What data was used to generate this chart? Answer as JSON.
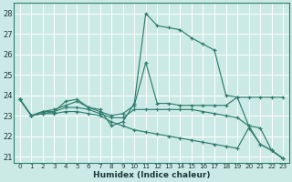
{
  "xlabel": "Humidex (Indice chaleur)",
  "xlim": [
    -0.5,
    23.5
  ],
  "ylim": [
    20.7,
    28.5
  ],
  "yticks": [
    21,
    22,
    23,
    24,
    25,
    26,
    27,
    28
  ],
  "xticks": [
    0,
    1,
    2,
    3,
    4,
    5,
    6,
    7,
    8,
    9,
    10,
    11,
    12,
    13,
    14,
    15,
    16,
    17,
    18,
    19,
    20,
    21,
    22,
    23
  ],
  "bg_color": "#cceae5",
  "grid_color": "#ffffff",
  "line_color": "#2e7d6e",
  "lines": [
    {
      "x": [
        0,
        1,
        2,
        3,
        4,
        5,
        6,
        7,
        8,
        9,
        10,
        11,
        12,
        13,
        14,
        15,
        16,
        17,
        18,
        19,
        20,
        21,
        22,
        23
      ],
      "y": [
        23.8,
        23.0,
        23.2,
        23.2,
        23.7,
        23.8,
        23.4,
        23.3,
        22.5,
        22.7,
        23.6,
        28.0,
        27.4,
        27.3,
        27.2,
        26.8,
        26.5,
        26.2,
        24.0,
        23.9,
        22.5,
        21.6,
        21.3,
        20.9
      ]
    },
    {
      "x": [
        0,
        1,
        2,
        3,
        4,
        5,
        6,
        7,
        8,
        9,
        10,
        11,
        12,
        13,
        14,
        15,
        16,
        17,
        18,
        19,
        20,
        21,
        22,
        23
      ],
      "y": [
        23.8,
        23.0,
        23.2,
        23.3,
        23.5,
        23.7,
        23.4,
        23.2,
        23.0,
        23.1,
        23.5,
        25.6,
        23.6,
        23.6,
        23.5,
        23.5,
        23.5,
        23.5,
        23.5,
        23.9,
        23.9,
        23.9,
        23.9,
        23.9
      ]
    },
    {
      "x": [
        0,
        1,
        2,
        3,
        4,
        5,
        6,
        7,
        8,
        9,
        10,
        11,
        12,
        13,
        14,
        15,
        16,
        17,
        18,
        19,
        20,
        21,
        22,
        23
      ],
      "y": [
        23.8,
        23.0,
        23.1,
        23.2,
        23.4,
        23.4,
        23.3,
        23.1,
        22.9,
        22.9,
        23.3,
        23.3,
        23.3,
        23.3,
        23.3,
        23.3,
        23.2,
        23.1,
        23.0,
        22.9,
        22.5,
        22.4,
        21.3,
        20.9
      ]
    },
    {
      "x": [
        0,
        1,
        2,
        3,
        4,
        5,
        6,
        7,
        8,
        9,
        10,
        11,
        12,
        13,
        14,
        15,
        16,
        17,
        18,
        19,
        20,
        21,
        22,
        23
      ],
      "y": [
        23.8,
        23.0,
        23.1,
        23.1,
        23.2,
        23.2,
        23.1,
        23.0,
        22.7,
        22.5,
        22.3,
        22.2,
        22.1,
        22.0,
        21.9,
        21.8,
        21.7,
        21.6,
        21.5,
        21.4,
        22.4,
        21.6,
        21.3,
        20.9
      ]
    }
  ]
}
